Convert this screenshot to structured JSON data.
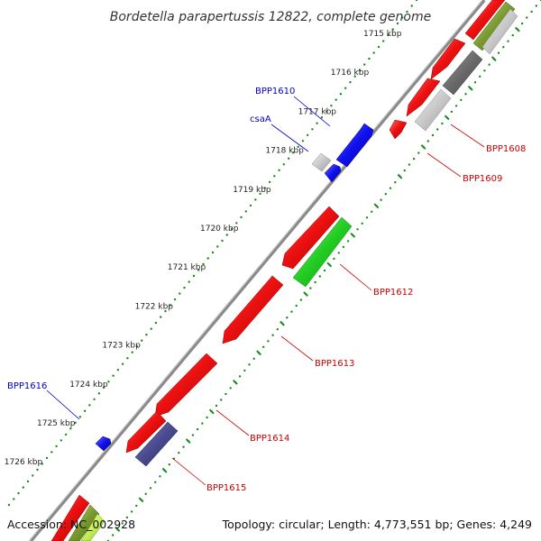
{
  "title": "Bordetella parapertussis 12822, complete genome",
  "footer": {
    "accession": "Accession: NC_002928",
    "summary": "Topology: circular; Length: 4,773,551 bp; Genes: 4,249"
  },
  "ticks": [
    "1715 kbp",
    "1716 kbp",
    "1717 kbp",
    "1718 kbp",
    "1719 kbp",
    "1720 kbp",
    "1721 kbp",
    "1722 kbp",
    "1723 kbp",
    "1724 kbp",
    "1725 kbp",
    "1726 kbp"
  ],
  "colors": {
    "forward_gene": "#0000ee",
    "reverse_gene": "#ee0000",
    "backbone": "#888888",
    "ruler_dots": "#1a8a1a",
    "label_blue": "#0000cc",
    "label_red": "#cc0000"
  },
  "labels": {
    "bpp1610": "BPP1610",
    "csaA": "csaA",
    "bpp1616": "BPP1616",
    "bpp1608": "BPP1608",
    "bpp1609": "BPP1609",
    "bpp1612": "BPP1612",
    "bpp1613": "BPP1613",
    "bpp1614": "BPP1614",
    "bpp1615": "BPP1615"
  }
}
